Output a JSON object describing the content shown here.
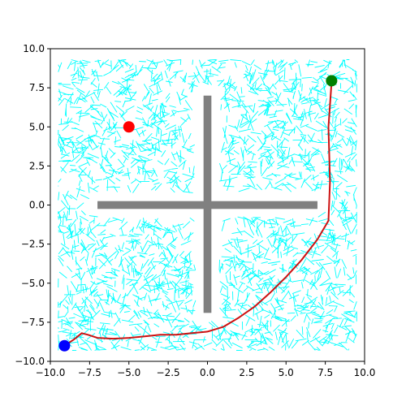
{
  "chart_data": {
    "type": "scatter",
    "title": "",
    "xlabel": "",
    "ylabel": "",
    "xlim": [
      -10,
      10
    ],
    "ylim": [
      -10,
      10
    ],
    "grid": false,
    "x_ticks": [
      -10.0,
      -7.5,
      -5.0,
      -2.5,
      0.0,
      2.5,
      5.0,
      7.5,
      10.0
    ],
    "y_ticks": [
      -10.0,
      -7.5,
      -5.0,
      -2.5,
      0.0,
      2.5,
      5.0,
      7.5,
      10.0
    ],
    "x_tick_labels": [
      "−10.0",
      "−7.5",
      "−5.0",
      "−2.5",
      "0.0",
      "2.5",
      "5.0",
      "7.5",
      "10.0"
    ],
    "y_tick_labels": [
      "−10.0",
      "−7.5",
      "−5.0",
      "−2.5",
      "0.0",
      "2.5",
      "5.0",
      "7.5",
      "10.0"
    ],
    "obstacles": [
      {
        "name": "vertical-bar",
        "x": [
          -0.25,
          0.25
        ],
        "y": [
          -6.9,
          7.0
        ],
        "color": "#808080"
      },
      {
        "name": "horizontal-bar",
        "x": [
          -7.0,
          7.0
        ],
        "y": [
          -0.25,
          0.25
        ],
        "color": "#808080"
      }
    ],
    "exploration_tree": {
      "color": "#00ffff",
      "seed": 7,
      "xrange": [
        -9.5,
        9.5
      ],
      "yrange": [
        -9.3,
        9.3
      ],
      "clearance": 0.5
    },
    "path": {
      "color": "#cc1111",
      "points": [
        [
          -9.1,
          -9.0
        ],
        [
          -8.5,
          -8.6
        ],
        [
          -8.0,
          -8.2
        ],
        [
          -7.6,
          -8.3
        ],
        [
          -7.0,
          -8.5
        ],
        [
          -6.0,
          -8.55
        ],
        [
          -5.0,
          -8.5
        ],
        [
          -4.0,
          -8.4
        ],
        [
          -3.0,
          -8.3
        ],
        [
          -2.0,
          -8.3
        ],
        [
          -1.0,
          -8.2
        ],
        [
          0.0,
          -8.1
        ],
        [
          1.0,
          -7.8
        ],
        [
          2.0,
          -7.2
        ],
        [
          3.0,
          -6.5
        ],
        [
          4.0,
          -5.6
        ],
        [
          5.0,
          -4.6
        ],
        [
          6.0,
          -3.5
        ],
        [
          7.0,
          -2.2
        ],
        [
          7.7,
          -1.0
        ],
        [
          7.8,
          1.5
        ],
        [
          7.7,
          5.0
        ],
        [
          7.9,
          7.9
        ]
      ]
    },
    "markers": [
      {
        "name": "start",
        "x": -9.1,
        "y": -9.0,
        "color": "#0000ff"
      },
      {
        "name": "goal",
        "x": 7.9,
        "y": 7.95,
        "color": "#008000"
      },
      {
        "name": "target",
        "x": -5.0,
        "y": 5.0,
        "color": "#ff0000"
      }
    ]
  }
}
